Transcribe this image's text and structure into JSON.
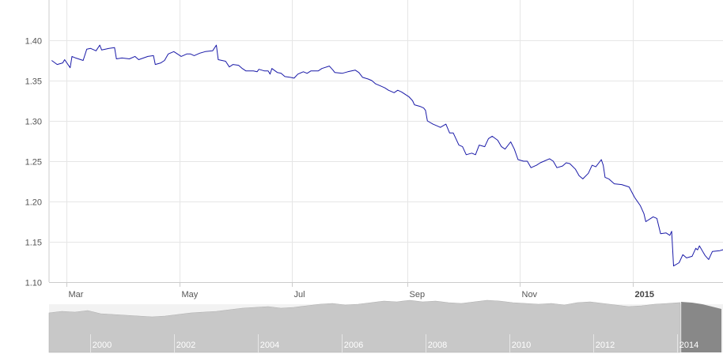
{
  "chart_data": {
    "type": "line",
    "title": "",
    "xlabel": "",
    "ylabel": "",
    "ylim": [
      1.1,
      1.43
    ],
    "grid": true,
    "line_color": "#1a1aa8",
    "y_ticks": [
      "1.10",
      "1.15",
      "1.20",
      "1.25",
      "1.30",
      "1.35",
      "1.40"
    ],
    "x_ticks": [
      {
        "label": "Mar",
        "date": "2014-03-01",
        "bold": false
      },
      {
        "label": "May",
        "date": "2014-05-01",
        "bold": false
      },
      {
        "label": "Jul",
        "date": "2014-07-01",
        "bold": false
      },
      {
        "label": "Sep",
        "date": "2014-09-01",
        "bold": false
      },
      {
        "label": "Nov",
        "date": "2014-11-01",
        "bold": false
      },
      {
        "label": "2015",
        "date": "2015-01-01",
        "bold": true
      }
    ],
    "x_range": [
      "2014-02-21",
      "2015-02-26"
    ],
    "series": [
      {
        "points": [
          [
            "2014-02-21",
            1.375
          ],
          [
            "2014-02-24",
            1.37
          ],
          [
            "2014-02-27",
            1.372
          ],
          [
            "2014-02-28",
            1.376
          ],
          [
            "2014-03-03",
            1.366
          ],
          [
            "2014-03-04",
            1.38
          ],
          [
            "2014-03-06",
            1.378
          ],
          [
            "2014-03-10",
            1.375
          ],
          [
            "2014-03-12",
            1.389
          ],
          [
            "2014-03-14",
            1.39
          ],
          [
            "2014-03-17",
            1.387
          ],
          [
            "2014-03-19",
            1.394
          ],
          [
            "2014-03-20",
            1.388
          ],
          [
            "2014-03-24",
            1.39
          ],
          [
            "2014-03-27",
            1.391
          ],
          [
            "2014-03-28",
            1.377
          ],
          [
            "2014-03-31",
            1.378
          ],
          [
            "2014-04-04",
            1.377
          ],
          [
            "2014-04-07",
            1.38
          ],
          [
            "2014-04-09",
            1.376
          ],
          [
            "2014-04-14",
            1.38
          ],
          [
            "2014-04-17",
            1.381
          ],
          [
            "2014-04-18",
            1.37
          ],
          [
            "2014-04-21",
            1.372
          ],
          [
            "2014-04-23",
            1.375
          ],
          [
            "2014-04-25",
            1.383
          ],
          [
            "2014-04-28",
            1.386
          ],
          [
            "2014-04-30",
            1.383
          ],
          [
            "2014-05-02",
            1.38
          ],
          [
            "2014-05-05",
            1.383
          ],
          [
            "2014-05-07",
            1.383
          ],
          [
            "2014-05-09",
            1.381
          ],
          [
            "2014-05-12",
            1.384
          ],
          [
            "2014-05-15",
            1.386
          ],
          [
            "2014-05-19",
            1.387
          ],
          [
            "2014-05-21",
            1.394
          ],
          [
            "2014-05-22",
            1.376
          ],
          [
            "2014-05-26",
            1.374
          ],
          [
            "2014-05-28",
            1.367
          ],
          [
            "2014-05-30",
            1.37
          ],
          [
            "2014-06-02",
            1.369
          ],
          [
            "2014-06-04",
            1.365
          ],
          [
            "2014-06-06",
            1.362
          ],
          [
            "2014-06-10",
            1.362
          ],
          [
            "2014-06-12",
            1.361
          ],
          [
            "2014-06-13",
            1.364
          ],
          [
            "2014-06-16",
            1.362
          ],
          [
            "2014-06-18",
            1.362
          ],
          [
            "2014-06-19",
            1.358
          ],
          [
            "2014-06-20",
            1.365
          ],
          [
            "2014-06-23",
            1.36
          ],
          [
            "2014-06-25",
            1.359
          ],
          [
            "2014-06-27",
            1.355
          ],
          [
            "2014-06-30",
            1.354
          ],
          [
            "2014-07-02",
            1.353
          ],
          [
            "2014-07-04",
            1.358
          ],
          [
            "2014-07-07",
            1.361
          ],
          [
            "2014-07-09",
            1.359
          ],
          [
            "2014-07-11",
            1.362
          ],
          [
            "2014-07-15",
            1.362
          ],
          [
            "2014-07-17",
            1.365
          ],
          [
            "2014-07-21",
            1.368
          ],
          [
            "2014-07-23",
            1.363
          ],
          [
            "2014-07-24",
            1.36
          ],
          [
            "2014-07-28",
            1.359
          ],
          [
            "2014-07-31",
            1.361
          ],
          [
            "2014-08-04",
            1.363
          ],
          [
            "2014-08-06",
            1.36
          ],
          [
            "2014-08-08",
            1.354
          ],
          [
            "2014-08-11",
            1.352
          ],
          [
            "2014-08-13",
            1.35
          ],
          [
            "2014-08-15",
            1.346
          ],
          [
            "2014-08-18",
            1.343
          ],
          [
            "2014-08-20",
            1.341
          ],
          [
            "2014-08-22",
            1.338
          ],
          [
            "2014-08-25",
            1.335
          ],
          [
            "2014-08-27",
            1.338
          ],
          [
            "2014-08-29",
            1.336
          ],
          [
            "2014-09-02",
            1.33
          ],
          [
            "2014-09-04",
            1.325
          ],
          [
            "2014-09-05",
            1.32
          ],
          [
            "2014-09-08",
            1.318
          ],
          [
            "2014-09-10",
            1.316
          ],
          [
            "2014-09-11",
            1.313
          ],
          [
            "2014-09-12",
            1.3
          ],
          [
            "2014-09-15",
            1.296
          ],
          [
            "2014-09-17",
            1.294
          ],
          [
            "2014-09-19",
            1.292
          ],
          [
            "2014-09-22",
            1.296
          ],
          [
            "2014-09-24",
            1.285
          ],
          [
            "2014-09-26",
            1.285
          ],
          [
            "2014-09-29",
            1.27
          ],
          [
            "2014-10-01",
            1.268
          ],
          [
            "2014-10-03",
            1.258
          ],
          [
            "2014-10-06",
            1.26
          ],
          [
            "2014-10-08",
            1.258
          ],
          [
            "2014-10-10",
            1.27
          ],
          [
            "2014-10-13",
            1.268
          ],
          [
            "2014-10-15",
            1.278
          ],
          [
            "2014-10-17",
            1.281
          ],
          [
            "2014-10-20",
            1.276
          ],
          [
            "2014-10-22",
            1.268
          ],
          [
            "2014-10-24",
            1.265
          ],
          [
            "2014-10-27",
            1.274
          ],
          [
            "2014-10-29",
            1.265
          ],
          [
            "2014-10-31",
            1.252
          ],
          [
            "2014-11-03",
            1.25
          ],
          [
            "2014-11-05",
            1.25
          ],
          [
            "2014-11-07",
            1.242
          ],
          [
            "2014-11-10",
            1.245
          ],
          [
            "2014-11-12",
            1.248
          ],
          [
            "2014-11-14",
            1.25
          ],
          [
            "2014-11-17",
            1.253
          ],
          [
            "2014-11-19",
            1.25
          ],
          [
            "2014-11-21",
            1.242
          ],
          [
            "2014-11-24",
            1.244
          ],
          [
            "2014-11-26",
            1.248
          ],
          [
            "2014-11-28",
            1.247
          ],
          [
            "2014-12-01",
            1.24
          ],
          [
            "2014-12-03",
            1.232
          ],
          [
            "2014-12-05",
            1.228
          ],
          [
            "2014-12-08",
            1.235
          ],
          [
            "2014-12-10",
            1.245
          ],
          [
            "2014-12-12",
            1.243
          ],
          [
            "2014-12-15",
            1.252
          ],
          [
            "2014-12-16",
            1.245
          ],
          [
            "2014-12-17",
            1.23
          ],
          [
            "2014-12-19",
            1.228
          ],
          [
            "2014-12-22",
            1.222
          ],
          [
            "2014-12-26",
            1.221
          ],
          [
            "2014-12-30",
            1.218
          ],
          [
            "2015-01-02",
            1.205
          ],
          [
            "2015-01-05",
            1.195
          ],
          [
            "2015-01-07",
            1.185
          ],
          [
            "2015-01-08",
            1.175
          ],
          [
            "2015-01-12",
            1.181
          ],
          [
            "2015-01-14",
            1.179
          ],
          [
            "2015-01-16",
            1.16
          ],
          [
            "2015-01-19",
            1.161
          ],
          [
            "2015-01-21",
            1.158
          ],
          [
            "2015-01-22",
            1.163
          ],
          [
            "2015-01-23",
            1.12
          ],
          [
            "2015-01-26",
            1.124
          ],
          [
            "2015-01-28",
            1.134
          ],
          [
            "2015-01-30",
            1.13
          ],
          [
            "2015-02-02",
            1.132
          ],
          [
            "2015-02-04",
            1.142
          ],
          [
            "2015-02-05",
            1.14
          ],
          [
            "2015-02-06",
            1.145
          ],
          [
            "2015-02-09",
            1.133
          ],
          [
            "2015-02-11",
            1.128
          ],
          [
            "2015-02-13",
            1.138
          ],
          [
            "2015-02-17",
            1.139
          ],
          [
            "2015-02-20",
            1.141
          ],
          [
            "2015-02-24",
            1.136
          ]
        ]
      }
    ]
  },
  "navigator": {
    "labels": [
      "2000",
      "2002",
      "2004",
      "2006",
      "2008",
      "2010",
      "2012",
      "2014"
    ],
    "area_color": "#c8c8c8",
    "selection_color": "#888888"
  }
}
